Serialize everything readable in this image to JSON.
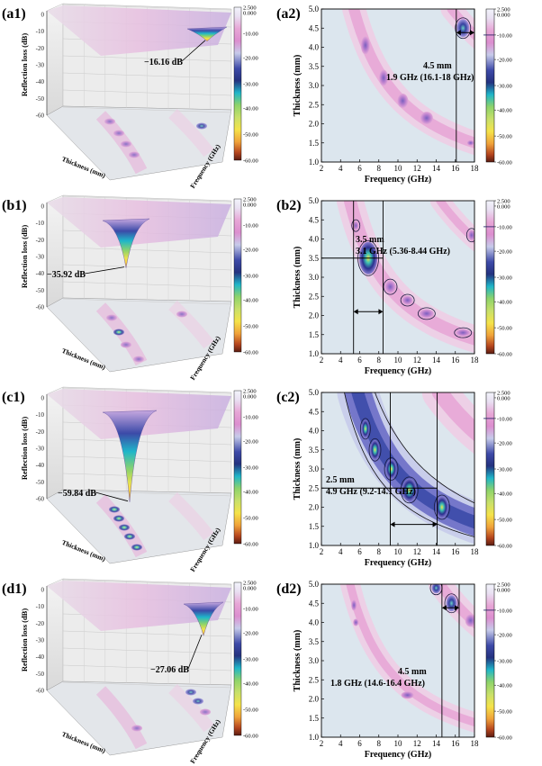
{
  "colors": {
    "bg": "#dce6ee",
    "pink_light": "#eecde4",
    "pink_mid": "#e7a6d6",
    "pink_strong": "#dd8bcc",
    "blue_light": "#c7cbea",
    "blue_dark": "#2b2f8f",
    "cyan": "#1fb6c9",
    "green": "#8ed36a",
    "yellow": "#f5e34a",
    "orange": "#f0a23a",
    "dark": "#5a1c12"
  },
  "colorbar": {
    "labels": [
      "2.500",
      "0.000",
      "-10.00",
      "-20.00",
      "-30.00",
      "-40.00",
      "-50.00",
      "-60.00"
    ]
  },
  "contour_axes": {
    "xlabel": "Frequency (GHz)",
    "ylabel": "Thickness (mm)",
    "xticks": [
      "2",
      "4",
      "6",
      "8",
      "10",
      "12",
      "14",
      "16",
      "18"
    ],
    "yticks": [
      "1.0",
      "1.5",
      "2.0",
      "2.5",
      "3.0",
      "3.5",
      "4.0",
      "4.5",
      "5.0"
    ]
  },
  "surface_axes": {
    "zlabel": "Reflection loss (dB)",
    "xlabel": "Thickness (mm)",
    "ylabel": "Frequency (GHz)",
    "zticks": [
      "0",
      "-10",
      "-20",
      "-30",
      "-40",
      "-50",
      "-60"
    ]
  },
  "chart_data": [
    {
      "type": "surface",
      "panel": "a1",
      "label": "(a1)",
      "min_rl_db": -16.16,
      "annotation": "−16.16 dB"
    },
    {
      "type": "heatmap",
      "panel": "a2",
      "label": "(a2)",
      "xlim": [
        2,
        18
      ],
      "ylim": [
        1,
        5
      ],
      "annotation": [
        "4.5 mm",
        "1.9 GHz (16.1-18 GHz)"
      ],
      "thickness_mm": 4.5,
      "band_ghz": [
        16.1,
        18
      ],
      "bandwidth_ghz": 1.9
    },
    {
      "type": "surface",
      "panel": "b1",
      "label": "(b1)",
      "min_rl_db": -35.92,
      "annotation": "−35.92 dB"
    },
    {
      "type": "heatmap",
      "panel": "b2",
      "label": "(b2)",
      "xlim": [
        2,
        18
      ],
      "ylim": [
        1,
        5
      ],
      "annotation": [
        "3.5 mm",
        "3.1 GHz (5.36-8.44 GHz)"
      ],
      "thickness_mm": 3.5,
      "band_ghz": [
        5.36,
        8.44
      ],
      "bandwidth_ghz": 3.1
    },
    {
      "type": "surface",
      "panel": "c1",
      "label": "(c1)",
      "min_rl_db": -59.84,
      "annotation": "−59.84 dB"
    },
    {
      "type": "heatmap",
      "panel": "c2",
      "label": "(c2)",
      "xlim": [
        2,
        18
      ],
      "ylim": [
        1,
        5
      ],
      "annotation": [
        "2.5 mm",
        "4.9 GHz (9.2-14.1 GHz)"
      ],
      "thickness_mm": 2.5,
      "band_ghz": [
        9.2,
        14.1
      ],
      "bandwidth_ghz": 4.9
    },
    {
      "type": "surface",
      "panel": "d1",
      "label": "(d1)",
      "min_rl_db": -27.06,
      "annotation": "−27.06 dB"
    },
    {
      "type": "heatmap",
      "panel": "d2",
      "label": "(d2)",
      "xlim": [
        2,
        18
      ],
      "ylim": [
        1,
        5
      ],
      "annotation": [
        "4.5 mm",
        "1.8 GHz (14.6-16.4 GHz)"
      ],
      "thickness_mm": 4.5,
      "band_ghz": [
        14.6,
        16.4
      ],
      "bandwidth_ghz": 1.8
    }
  ]
}
